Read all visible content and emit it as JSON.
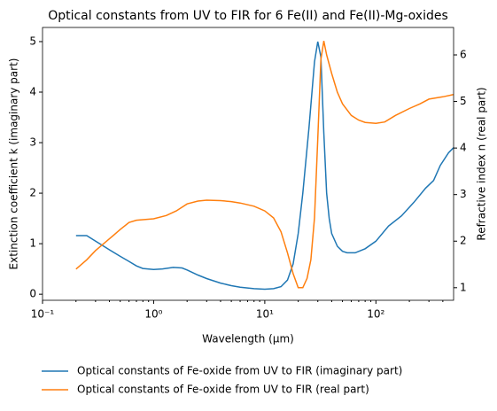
{
  "chart_data": {
    "type": "line",
    "title": "Optical constants from UV to FIR for 6 Fe(II) and Fe(II)-Mg-oxides",
    "x_label": "Wavelength (μm)",
    "y_label": "Extinction coefficient k (imaginary part)",
    "y2_label": "Refractive index n (real part)",
    "x_scale": "log",
    "xlim": [
      0.1,
      500
    ],
    "xticks": [
      {
        "value": 0.1,
        "label": "10⁻¹"
      },
      {
        "value": 1,
        "label": "10⁰"
      },
      {
        "value": 10,
        "label": "10¹"
      },
      {
        "value": 100,
        "label": "10²"
      }
    ],
    "ylim": [
      -0.12,
      5.28
    ],
    "yticks": [
      0,
      1,
      2,
      3,
      4,
      5
    ],
    "y2lim": [
      0.73,
      6.59
    ],
    "y2ticks": [
      1,
      2,
      3,
      4,
      5,
      6
    ],
    "legend": "below",
    "series": [
      {
        "name": "Optical constants of Fe-oxide from UV to FIR (imaginary part)",
        "color": "#1f77b4",
        "x": [
          0.2,
          0.25,
          0.3,
          0.4,
          0.5,
          0.6,
          0.7,
          0.8,
          1,
          1.2,
          1.5,
          1.8,
          2,
          2.5,
          3,
          4,
          5,
          6,
          8,
          10,
          12,
          14,
          16,
          18,
          20,
          22,
          25,
          28,
          30,
          32,
          34,
          36,
          38,
          40,
          45,
          50,
          55,
          65,
          80,
          100,
          130,
          170,
          220,
          280,
          330,
          380,
          450,
          500
        ],
        "values": [
          1.16,
          1.16,
          1.05,
          0.88,
          0.75,
          0.65,
          0.56,
          0.51,
          0.49,
          0.5,
          0.53,
          0.52,
          0.48,
          0.38,
          0.31,
          0.22,
          0.17,
          0.14,
          0.11,
          0.1,
          0.11,
          0.15,
          0.28,
          0.6,
          1.2,
          2.0,
          3.3,
          4.6,
          5.0,
          4.7,
          3.2,
          2.0,
          1.5,
          1.2,
          0.95,
          0.85,
          0.82,
          0.82,
          0.9,
          1.05,
          1.35,
          1.55,
          1.82,
          2.1,
          2.25,
          2.55,
          2.8,
          2.9
        ]
      },
      {
        "name": "Optical constants of Fe-oxide from UV to FIR (real part)",
        "color": "#ff7f0e",
        "axis": "y2",
        "x": [
          0.2,
          0.25,
          0.3,
          0.4,
          0.5,
          0.6,
          0.7,
          1,
          1.3,
          1.6,
          2,
          2.5,
          3,
          4,
          5,
          6,
          8,
          10,
          12,
          14,
          16,
          18,
          20,
          22,
          24,
          26,
          28,
          30,
          32,
          34,
          36,
          40,
          45,
          50,
          60,
          70,
          80,
          100,
          120,
          150,
          200,
          250,
          300,
          400,
          500
        ],
        "values": [
          1.4,
          1.6,
          1.8,
          2.05,
          2.25,
          2.4,
          2.45,
          2.48,
          2.55,
          2.65,
          2.8,
          2.86,
          2.88,
          2.87,
          2.85,
          2.82,
          2.75,
          2.65,
          2.5,
          2.2,
          1.75,
          1.3,
          1.0,
          1.0,
          1.2,
          1.6,
          2.5,
          4.2,
          5.9,
          6.3,
          6.0,
          5.6,
          5.2,
          4.95,
          4.7,
          4.6,
          4.55,
          4.53,
          4.56,
          4.7,
          4.85,
          4.95,
          5.05,
          5.1,
          5.15
        ]
      }
    ]
  }
}
